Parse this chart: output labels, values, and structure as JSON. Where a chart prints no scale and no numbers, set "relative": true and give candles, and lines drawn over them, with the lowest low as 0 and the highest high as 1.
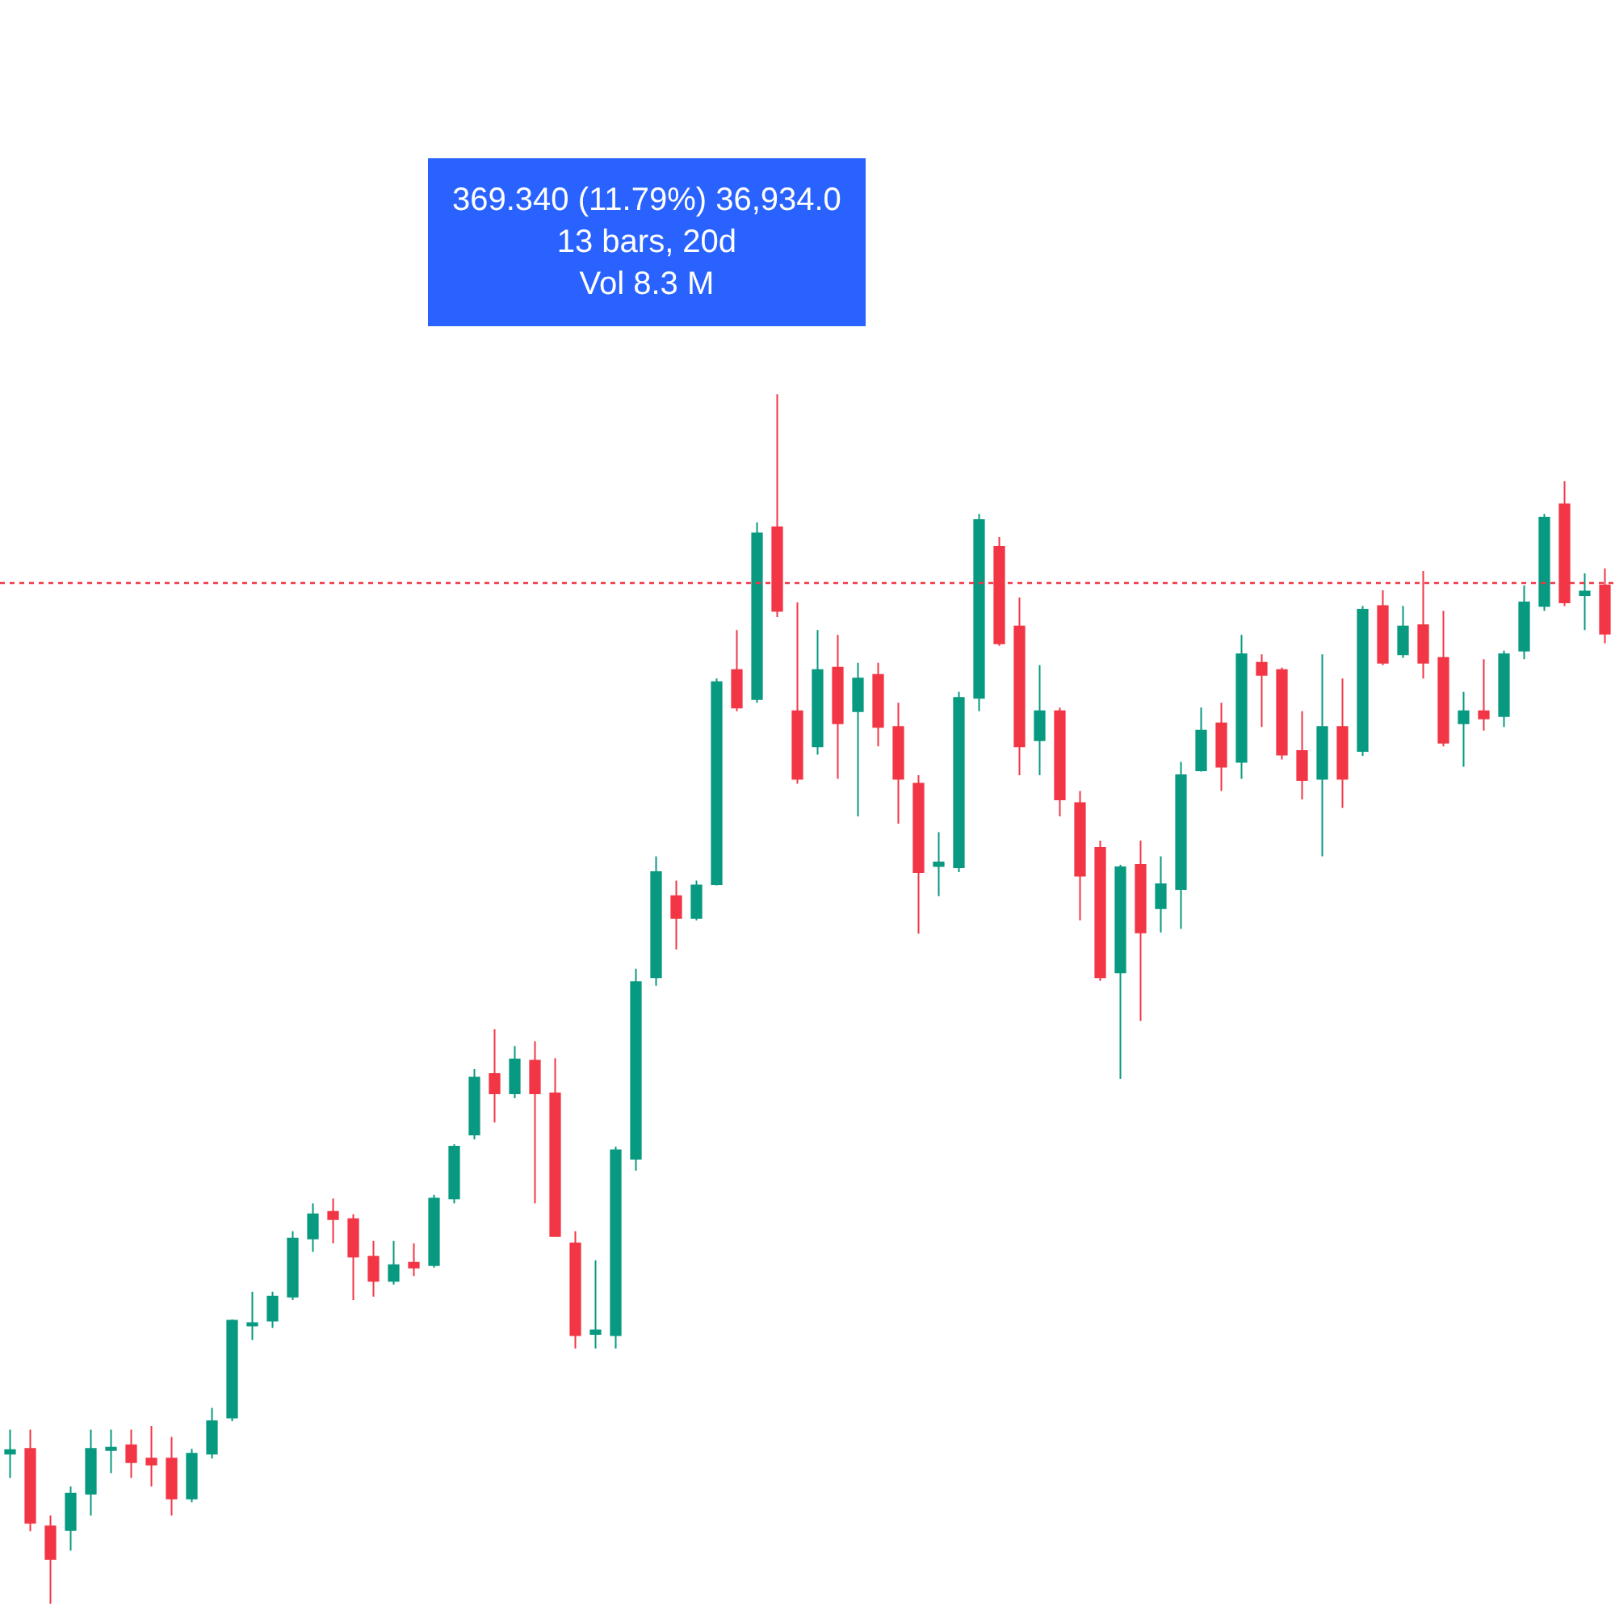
{
  "chart_data": {
    "type": "candlestick",
    "relative": true,
    "categories": [
      null,
      null,
      null,
      null,
      null,
      null,
      null,
      null,
      null,
      null,
      null,
      null,
      null,
      null,
      null,
      null,
      null,
      null,
      null,
      null,
      null,
      null,
      null,
      null,
      null,
      null,
      null,
      null,
      null,
      null,
      null,
      null,
      null,
      null,
      null,
      null,
      null,
      null,
      null,
      null,
      null,
      null,
      null,
      null,
      null,
      null,
      null,
      null,
      null,
      null,
      null,
      null,
      null,
      null,
      null,
      null,
      null,
      null,
      null,
      null,
      null,
      null,
      null,
      null,
      null,
      null,
      null,
      null,
      null,
      null,
      null,
      null,
      null,
      null,
      null,
      null,
      null,
      null,
      null,
      null
    ],
    "ohlc": [
      [
        0.124,
        0.144,
        0.104,
        0.127
      ],
      [
        0.128,
        0.144,
        0.06,
        0.067
      ],
      [
        0.064,
        0.073,
        0.0,
        0.037
      ],
      [
        0.061,
        0.097,
        0.044,
        0.091
      ],
      [
        0.091,
        0.144,
        0.073,
        0.128
      ],
      [
        0.127,
        0.144,
        0.108,
        0.129
      ],
      [
        0.131,
        0.144,
        0.104,
        0.117
      ],
      [
        0.12,
        0.147,
        0.097,
        0.115
      ],
      [
        0.12,
        0.138,
        0.073,
        0.087
      ],
      [
        0.087,
        0.128,
        0.084,
        0.124
      ],
      [
        0.124,
        0.162,
        0.12,
        0.151
      ],
      [
        0.154,
        0.235,
        0.151,
        0.234
      ],
      [
        0.23,
        0.258,
        0.218,
        0.232
      ],
      [
        0.234,
        0.258,
        0.228,
        0.254
      ],
      [
        0.254,
        0.308,
        0.251,
        0.302
      ],
      [
        0.302,
        0.331,
        0.291,
        0.322
      ],
      [
        0.324,
        0.335,
        0.298,
        0.318
      ],
      [
        0.318,
        0.322,
        0.251,
        0.287
      ],
      [
        0.287,
        0.3,
        0.254,
        0.267
      ],
      [
        0.267,
        0.3,
        0.264,
        0.28
      ],
      [
        0.282,
        0.298,
        0.271,
        0.278
      ],
      [
        0.28,
        0.338,
        0.278,
        0.335
      ],
      [
        0.335,
        0.38,
        0.331,
        0.378
      ],
      [
        0.388,
        0.442,
        0.384,
        0.435
      ],
      [
        0.438,
        0.475,
        0.398,
        0.422
      ],
      [
        0.422,
        0.461,
        0.418,
        0.45
      ],
      [
        0.449,
        0.465,
        0.331,
        0.422
      ],
      [
        0.422,
        0.451,
        0.304,
        0.304
      ],
      [
        0.298,
        0.308,
        0.211,
        0.222
      ],
      [
        0.223,
        0.284,
        0.211,
        0.226
      ],
      [
        0.222,
        0.378,
        0.211,
        0.375
      ],
      [
        0.368,
        0.525,
        0.358,
        0.514
      ],
      [
        0.518,
        0.618,
        0.511,
        0.605
      ],
      [
        0.585,
        0.598,
        0.541,
        0.567
      ],
      [
        0.567,
        0.598,
        0.565,
        0.594
      ],
      [
        0.595,
        0.765,
        0.594,
        0.762
      ],
      [
        0.772,
        0.805,
        0.738,
        0.741
      ],
      [
        0.748,
        0.894,
        0.745,
        0.885
      ],
      [
        0.89,
        1.0,
        0.816,
        0.821
      ],
      [
        0.738,
        0.828,
        0.678,
        0.682
      ],
      [
        0.709,
        0.805,
        0.702,
        0.772
      ],
      [
        0.774,
        0.801,
        0.682,
        0.728
      ],
      [
        0.738,
        0.778,
        0.651,
        0.765
      ],
      [
        0.768,
        0.778,
        0.709,
        0.725
      ],
      [
        0.725,
        0.745,
        0.645,
        0.682
      ],
      [
        0.678,
        0.685,
        0.554,
        0.605
      ],
      [
        0.61,
        0.638,
        0.585,
        0.613
      ],
      [
        0.609,
        0.754,
        0.605,
        0.749
      ],
      [
        0.749,
        0.901,
        0.738,
        0.896
      ],
      [
        0.874,
        0.882,
        0.792,
        0.794
      ],
      [
        0.808,
        0.832,
        0.685,
        0.709
      ],
      [
        0.714,
        0.776,
        0.685,
        0.738
      ],
      [
        0.738,
        0.741,
        0.651,
        0.665
      ],
      [
        0.662,
        0.672,
        0.565,
        0.602
      ],
      [
        0.625,
        0.631,
        0.515,
        0.518
      ],
      [
        0.522,
        0.611,
        0.434,
        0.609
      ],
      [
        0.611,
        0.631,
        0.482,
        0.555
      ],
      [
        0.575,
        0.618,
        0.555,
        0.595
      ],
      [
        0.591,
        0.696,
        0.558,
        0.685
      ],
      [
        0.689,
        0.741,
        0.688,
        0.722
      ],
      [
        0.728,
        0.745,
        0.672,
        0.692
      ],
      [
        0.696,
        0.801,
        0.682,
        0.785
      ],
      [
        0.778,
        0.785,
        0.725,
        0.768
      ],
      [
        0.772,
        0.774,
        0.698,
        0.702
      ],
      [
        0.705,
        0.738,
        0.665,
        0.681
      ],
      [
        0.682,
        0.785,
        0.618,
        0.725
      ],
      [
        0.725,
        0.765,
        0.658,
        0.682
      ],
      [
        0.705,
        0.825,
        0.701,
        0.822
      ],
      [
        0.825,
        0.838,
        0.776,
        0.778
      ],
      [
        0.785,
        0.825,
        0.782,
        0.808
      ],
      [
        0.809,
        0.854,
        0.765,
        0.778
      ],
      [
        0.782,
        0.821,
        0.709,
        0.712
      ],
      [
        0.728,
        0.754,
        0.692,
        0.738
      ],
      [
        0.738,
        0.781,
        0.722,
        0.732
      ],
      [
        0.734,
        0.788,
        0.725,
        0.785
      ],
      [
        0.788,
        0.842,
        0.781,
        0.828
      ],
      [
        0.825,
        0.901,
        0.821,
        0.898
      ],
      [
        0.909,
        0.928,
        0.825,
        0.828
      ],
      [
        0.834,
        0.852,
        0.805,
        0.837
      ],
      [
        0.842,
        0.856,
        0.794,
        0.802
      ]
    ],
    "colors": [
      "#089981",
      "#f23645",
      "#f23645",
      "#089981",
      "#089981",
      "#089981",
      "#f23645",
      "#f23645",
      "#f23645",
      "#089981",
      "#089981",
      "#089981",
      "#089981",
      "#089981",
      "#089981",
      "#089981",
      "#f23645",
      "#f23645",
      "#f23645",
      "#089981",
      "#f23645",
      "#089981",
      "#089981",
      "#089981",
      "#f23645",
      "#089981",
      "#f23645",
      "#f23645",
      "#f23645",
      "#089981",
      "#089981",
      "#089981",
      "#089981",
      "#f23645",
      "#089981",
      "#089981",
      "#f23645",
      "#089981",
      "#f23645",
      "#f23645",
      "#089981",
      "#f23645",
      "#089981",
      "#f23645",
      "#f23645",
      "#f23645",
      "#089981",
      "#089981",
      "#089981",
      "#f23645",
      "#f23645",
      "#089981",
      "#f23645",
      "#f23645",
      "#f23645",
      "#089981",
      "#f23645",
      "#089981",
      "#089981",
      "#089981",
      "#f23645",
      "#089981",
      "#f23645",
      "#f23645",
      "#f23645",
      "#089981",
      "#f23645",
      "#089981",
      "#f23645",
      "#089981",
      "#f23645",
      "#f23645",
      "#089981",
      "#f23645",
      "#089981",
      "#089981",
      "#089981",
      "#f23645",
      "#089981",
      "#f23645"
    ],
    "ref_lines": [
      {
        "axis": "y",
        "value": 0.844,
        "color": "#f23645",
        "line_style": "dotted"
      }
    ],
    "annotations": [
      "369.340 (11.79%) 36,934.0",
      "13 bars, 20d",
      "Vol 8.3 M"
    ]
  }
}
